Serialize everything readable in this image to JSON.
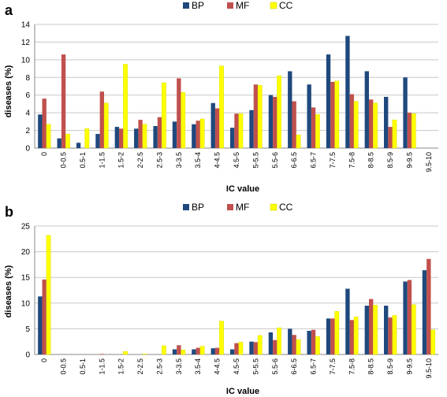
{
  "colors": {
    "BP": "#1F497D",
    "MF": "#C0504D",
    "CC": "#FFFF00"
  },
  "chart_data": [
    {
      "panel": "a",
      "type": "bar",
      "xlabel": "IC value",
      "ylabel": "diseases (%)",
      "ylim": [
        0,
        14
      ],
      "yticks": [
        "0",
        "2",
        "4",
        "6",
        "8",
        "10",
        "12",
        "14"
      ],
      "grid": true,
      "legend_placement": "top",
      "categories": [
        "0",
        "0-0.5",
        "0.5-1",
        "1-1.5",
        "1.5-2",
        "2-2.5",
        "2.5-3",
        "3-3.5",
        "3.5-4",
        "4-4.5",
        "4.5-5",
        "5-5.5",
        "5.5-6",
        "6-6.5",
        "6.5-7",
        "7-7.5",
        "7.5-8",
        "8-8.5",
        "8.5-9",
        "9-9.5",
        "9.5-10"
      ],
      "series": [
        {
          "name": "BP",
          "values": [
            3.8,
            1.1,
            0.6,
            1.6,
            2.4,
            2.2,
            2.5,
            3.0,
            2.7,
            5.1,
            2.3,
            4.3,
            6.0,
            8.7,
            7.2,
            10.6,
            12.7,
            8.7,
            5.8,
            8.0,
            0
          ]
        },
        {
          "name": "MF",
          "values": [
            5.6,
            10.6,
            0,
            6.4,
            2.2,
            3.2,
            3.5,
            7.9,
            3.1,
            4.5,
            3.9,
            7.2,
            5.8,
            5.3,
            4.6,
            7.5,
            6.1,
            5.5,
            2.4,
            4.0,
            0
          ]
        },
        {
          "name": "CC",
          "values": [
            2.7,
            1.6,
            2.2,
            5.1,
            9.5,
            2.7,
            7.4,
            6.3,
            3.3,
            9.3,
            3.9,
            7.1,
            8.2,
            1.5,
            3.8,
            7.6,
            5.3,
            5.1,
            3.2,
            3.9,
            0
          ]
        }
      ]
    },
    {
      "panel": "b",
      "type": "bar",
      "xlabel": "IC value",
      "ylabel": "diseases (%)",
      "ylim": [
        0,
        25
      ],
      "yticks": [
        "0",
        "5",
        "10",
        "15",
        "20",
        "25"
      ],
      "grid": true,
      "legend_placement": "top",
      "categories": [
        "0",
        "0-0.5",
        "0.5-1",
        "1-1.5",
        "1.5-2",
        "2-2.5",
        "2.5-3",
        "3-3.5",
        "3.5-4",
        "4-4.5",
        "4.5-5",
        "5-5.5",
        "5.5-6",
        "6-6.5",
        "6.5-7",
        "7-7.5",
        "7.5-8",
        "8-8.5",
        "8.5-9",
        "9-9.5",
        "9.5-10"
      ],
      "series": [
        {
          "name": "BP",
          "values": [
            11.3,
            0,
            0,
            0,
            0,
            0,
            0,
            1.0,
            1.0,
            1.2,
            1.0,
            2.5,
            4.3,
            5.0,
            4.6,
            7.0,
            12.8,
            9.5,
            9.5,
            14.2,
            16.4
          ]
        },
        {
          "name": "MF",
          "values": [
            14.6,
            0,
            0,
            0.1,
            0,
            0,
            0,
            1.8,
            1.3,
            1.3,
            2.2,
            2.4,
            2.8,
            3.8,
            4.8,
            7.0,
            6.7,
            10.8,
            7.2,
            14.5,
            18.6
          ]
        },
        {
          "name": "CC",
          "values": [
            23.2,
            0,
            0,
            0,
            0.6,
            0.1,
            1.7,
            0.9,
            1.6,
            6.5,
            2.4,
            3.7,
            5.2,
            2.9,
            3.5,
            8.4,
            7.3,
            9.6,
            7.6,
            9.7,
            4.8
          ]
        }
      ]
    }
  ]
}
